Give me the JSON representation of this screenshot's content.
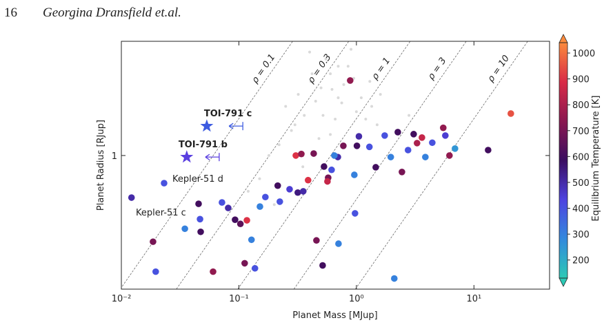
{
  "header": {
    "page": "16",
    "authors": "Georgina Dransfield et.al."
  },
  "chart_data": {
    "type": "scatter",
    "xlabel": "Planet Mass [MJup]",
    "ylabel": "Planet Radius [RJup]",
    "xscale": "log",
    "yscale": "log",
    "xlim": [
      0.01,
      44
    ],
    "ylim": [
      0.545,
      1.68
    ],
    "xticks": [
      {
        "value": 0.01,
        "label": "10⁻²"
      },
      {
        "value": 0.1,
        "label": "10⁻¹"
      },
      {
        "value": 1,
        "label": "10⁰"
      },
      {
        "value": 10,
        "label": "10¹"
      }
    ],
    "yticks": [
      1
    ],
    "background": {
      "color": "#d9d9d9",
      "x": [
        0.25,
        0.32,
        0.41,
        0.5,
        0.6,
        0.7,
        0.85,
        1.0,
        1.2,
        1.5,
        0.28,
        0.36,
        0.45,
        0.55,
        0.66,
        0.78,
        0.95,
        1.1,
        1.35,
        1.8,
        0.22,
        0.3,
        0.4,
        0.52,
        0.62,
        0.9,
        1.3,
        2.2,
        0.18,
        0.6,
        0.75,
        0.48,
        1.6,
        0.35,
        0.15,
        0.2,
        0.12,
        0.7,
        2.8,
        0.42
      ],
      "y": [
        1.25,
        1.32,
        1.4,
        1.36,
        1.45,
        1.3,
        1.5,
        1.22,
        1.18,
        1.15,
        1.12,
        1.2,
        1.28,
        1.55,
        1.18,
        1.38,
        1.42,
        1.3,
        1.25,
        1.1,
        1.05,
        1.15,
        1.6,
        1.2,
        1.35,
        1.62,
        1.4,
        1.12,
        1.0,
        1.1,
        1.27,
        1.08,
        1.32,
        0.95,
        0.9,
        0.8,
        0.85,
        1.5,
        1.2,
        1.45
      ]
    },
    "planets": {
      "x": [
        0.0122,
        0.0231,
        0.0186,
        0.0196,
        0.0347,
        0.0454,
        0.0467,
        0.0473,
        0.0603,
        0.0718,
        0.0811,
        0.0928,
        0.117,
        0.151,
        0.168,
        0.214,
        0.223,
        0.27,
        0.317,
        0.353,
        0.305,
        0.34,
        0.433,
        0.53,
        0.575,
        0.567,
        0.615,
        0.695,
        0.649,
        0.774,
        0.885,
        1.01,
        1.05,
        0.96,
        1.29,
        1.46,
        1.96,
        2.25,
        2.44,
        2.75,
        3.07,
        3.28,
        3.61,
        3.86,
        4.42,
        5.48,
        5.71,
        6.19,
        6.9,
        13.2,
        20.6,
        0.103,
        0.128,
        0.112,
        0.137,
        0.457,
        0.516,
        0.973,
        0.704,
        2.1,
        0.388,
        1.74
      ],
      "y": [
        0.826,
        0.882,
        0.676,
        0.59,
        0.717,
        0.803,
        0.749,
        0.707,
        0.59,
        0.808,
        0.788,
        0.747,
        0.745,
        0.793,
        0.828,
        0.872,
        0.811,
        0.858,
        0.845,
        0.85,
        1.0,
        1.007,
        1.009,
        0.951,
        0.904,
        0.889,
        0.937,
        0.993,
        1.0,
        1.045,
        1.406,
        1.045,
        1.091,
        0.916,
        1.04,
        0.948,
        0.993,
        1.112,
        0.928,
        1.025,
        1.102,
        1.058,
        1.085,
        0.993,
        1.06,
        1.134,
        1.095,
        1.0,
        1.032,
        1.025,
        1.21,
        0.733,
        0.682,
        0.613,
        0.599,
        0.68,
        0.607,
        0.769,
        0.67,
        0.572,
        0.894,
        1.095
      ],
      "temperature": [
        500,
        400,
        700,
        400,
        300,
        600,
        400,
        600,
        750,
        400,
        500,
        600,
        900,
        300,
        400,
        600,
        400,
        450,
        550,
        500,
        900,
        750,
        700,
        600,
        700,
        850,
        400,
        500,
        300,
        700,
        750,
        600,
        500,
        300,
        400,
        600,
        300,
        600,
        700,
        400,
        600,
        800,
        850,
        300,
        400,
        750,
        450,
        750,
        250,
        600,
        950,
        650,
        300,
        700,
        400,
        700,
        600,
        400,
        300,
        300,
        900,
        400
      ]
    },
    "density_lines": {
      "values": [
        0.1,
        0.3,
        1,
        3,
        10
      ],
      "labels": [
        "ρ = 0.1",
        "ρ = 0.3",
        "ρ = 1",
        "ρ = 3",
        "ρ = 10"
      ]
    },
    "highlighted": [
      {
        "name": "TOI-791 c",
        "color": "#1aa36b",
        "marker_color": "#3d5be0",
        "x": 0.0533,
        "y": 1.143,
        "x_upper_limit": 0.108
      },
      {
        "name": "TOI-791 b",
        "color": "#e0336a",
        "marker_color": "#5a3fe0",
        "x": 0.036,
        "y": 0.993,
        "x_upper_limit": 0.068
      }
    ],
    "labels": [
      "Kepler-51 d",
      "Kepler-51 c"
    ],
    "colorbar": {
      "label": "Equilibrium Temperature [K]",
      "lim": [
        130,
        1040
      ],
      "ticks": [
        200,
        300,
        400,
        500,
        600,
        700,
        800,
        900,
        1000
      ],
      "colors": [
        "#2cc9b5",
        "#3389dd",
        "#4e43e0",
        "#3a0d60",
        "#8a1850",
        "#d92b47",
        "#fb8a3c"
      ]
    }
  }
}
